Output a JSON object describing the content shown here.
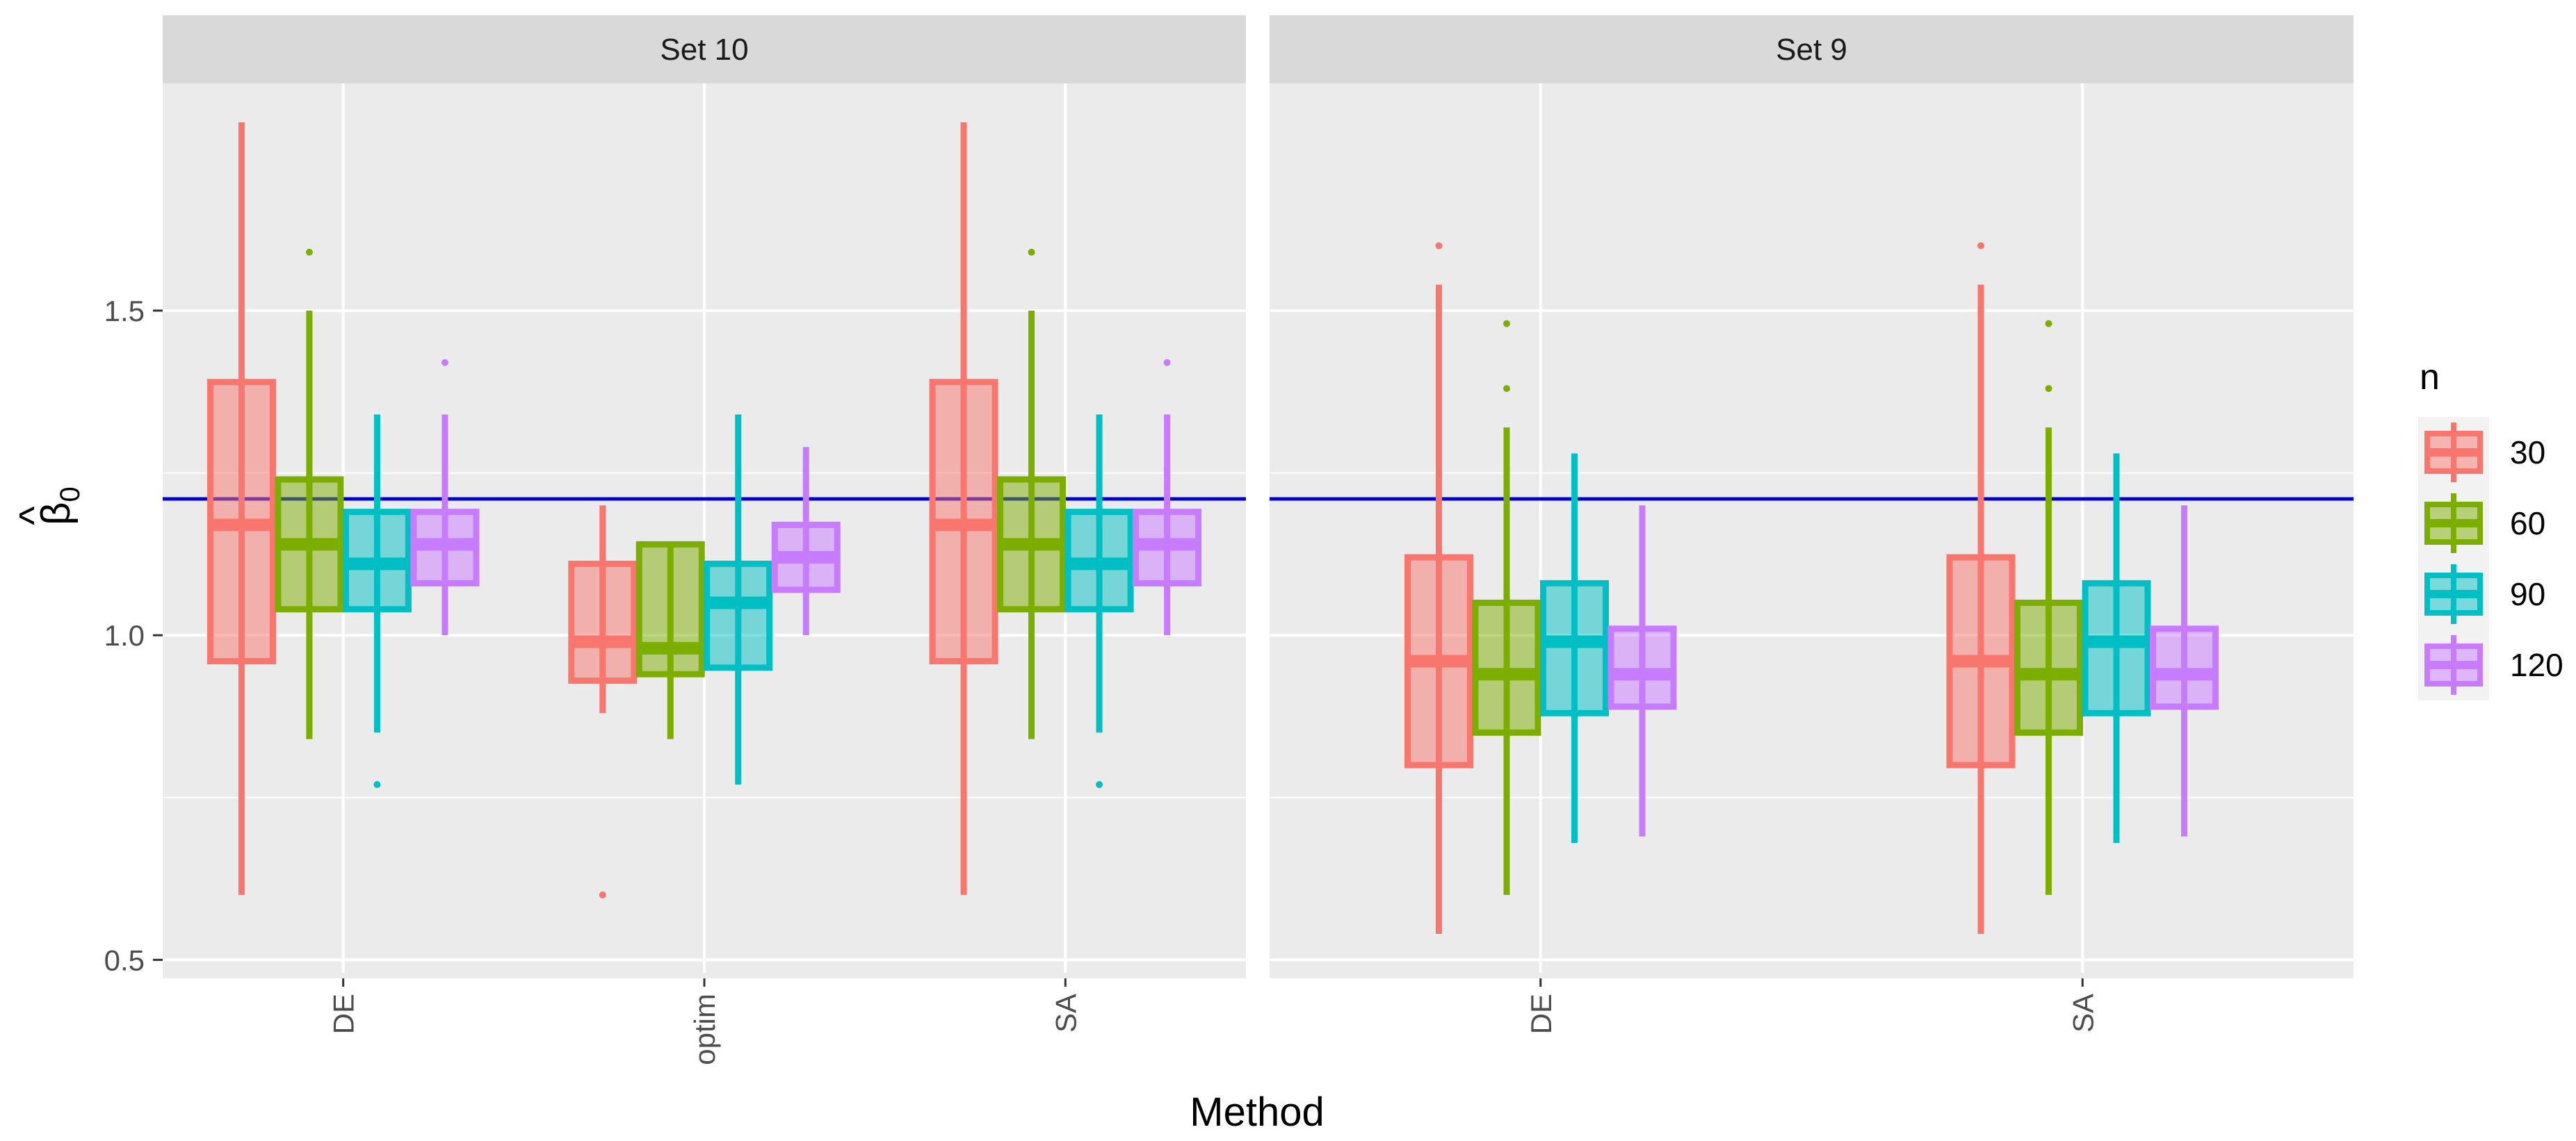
{
  "chart_data": {
    "type": "boxplot",
    "xlabel": "Method",
    "ylabel": "β̂₀",
    "ylabel_parts": {
      "hat": "^",
      "symbol": "β",
      "subscript": "0"
    },
    "ylim": [
      0.48,
      1.85
    ],
    "yticks": [
      0.5,
      1.0,
      1.5
    ],
    "ytick_labels": [
      "0.5",
      "1.0",
      "1.5"
    ],
    "reference_line": {
      "y": 1.21,
      "color": "#0000cc"
    },
    "legend": {
      "title": "n",
      "entries": [
        {
          "label": "30",
          "color": "#F8766D"
        },
        {
          "label": "60",
          "color": "#7CAE00"
        },
        {
          "label": "90",
          "color": "#00BFC4"
        },
        {
          "label": "120",
          "color": "#C77CFF"
        }
      ]
    },
    "panels": [
      {
        "strip": "Set 10",
        "categories": [
          "DE",
          "optim",
          "SA"
        ],
        "boxes": [
          [
            {
              "n": "30",
              "lower_whisker": 0.6,
              "q1": 0.96,
              "median": 1.17,
              "q3": 1.39,
              "upper_whisker": 1.79,
              "outliers": []
            },
            {
              "n": "60",
              "lower_whisker": 0.84,
              "q1": 1.04,
              "median": 1.14,
              "q3": 1.24,
              "upper_whisker": 1.5,
              "outliers": [
                1.59
              ]
            },
            {
              "n": "90",
              "lower_whisker": 0.85,
              "q1": 1.04,
              "median": 1.11,
              "q3": 1.19,
              "upper_whisker": 1.34,
              "outliers": [
                0.77
              ]
            },
            {
              "n": "120",
              "lower_whisker": 1.0,
              "q1": 1.08,
              "median": 1.14,
              "q3": 1.19,
              "upper_whisker": 1.34,
              "outliers": [
                1.42
              ]
            }
          ],
          [
            {
              "n": "30",
              "lower_whisker": 0.88,
              "q1": 0.93,
              "median": 0.99,
              "q3": 1.11,
              "upper_whisker": 1.2,
              "outliers": [
                0.6
              ]
            },
            {
              "n": "60",
              "lower_whisker": 0.84,
              "q1": 0.94,
              "median": 0.98,
              "q3": 1.14,
              "upper_whisker": 1.14,
              "outliers": []
            },
            {
              "n": "90",
              "lower_whisker": 0.77,
              "q1": 0.95,
              "median": 1.05,
              "q3": 1.11,
              "upper_whisker": 1.34,
              "outliers": []
            },
            {
              "n": "120",
              "lower_whisker": 1.0,
              "q1": 1.07,
              "median": 1.12,
              "q3": 1.17,
              "upper_whisker": 1.29,
              "outliers": []
            }
          ],
          [
            {
              "n": "30",
              "lower_whisker": 0.6,
              "q1": 0.96,
              "median": 1.17,
              "q3": 1.39,
              "upper_whisker": 1.79,
              "outliers": []
            },
            {
              "n": "60",
              "lower_whisker": 0.84,
              "q1": 1.04,
              "median": 1.14,
              "q3": 1.24,
              "upper_whisker": 1.5,
              "outliers": [
                1.59
              ]
            },
            {
              "n": "90",
              "lower_whisker": 0.85,
              "q1": 1.04,
              "median": 1.11,
              "q3": 1.19,
              "upper_whisker": 1.34,
              "outliers": [
                0.77
              ]
            },
            {
              "n": "120",
              "lower_whisker": 1.0,
              "q1": 1.08,
              "median": 1.14,
              "q3": 1.19,
              "upper_whisker": 1.34,
              "outliers": [
                1.42
              ]
            }
          ]
        ]
      },
      {
        "strip": "Set 9",
        "categories": [
          "DE",
          "SA"
        ],
        "boxes": [
          [
            {
              "n": "30",
              "lower_whisker": 0.54,
              "q1": 0.8,
              "median": 0.96,
              "q3": 1.12,
              "upper_whisker": 1.54,
              "outliers": [
                1.6
              ]
            },
            {
              "n": "60",
              "lower_whisker": 0.6,
              "q1": 0.85,
              "median": 0.94,
              "q3": 1.05,
              "upper_whisker": 1.32,
              "outliers": [
                1.38,
                1.48
              ]
            },
            {
              "n": "90",
              "lower_whisker": 0.68,
              "q1": 0.88,
              "median": 0.99,
              "q3": 1.08,
              "upper_whisker": 1.28,
              "outliers": []
            },
            {
              "n": "120",
              "lower_whisker": 0.69,
              "q1": 0.89,
              "median": 0.94,
              "q3": 1.01,
              "upper_whisker": 1.2,
              "outliers": []
            }
          ],
          [
            {
              "n": "30",
              "lower_whisker": 0.54,
              "q1": 0.8,
              "median": 0.96,
              "q3": 1.12,
              "upper_whisker": 1.54,
              "outliers": [
                1.6
              ]
            },
            {
              "n": "60",
              "lower_whisker": 0.6,
              "q1": 0.85,
              "median": 0.94,
              "q3": 1.05,
              "upper_whisker": 1.32,
              "outliers": [
                1.38,
                1.48
              ]
            },
            {
              "n": "90",
              "lower_whisker": 0.68,
              "q1": 0.88,
              "median": 0.99,
              "q3": 1.08,
              "upper_whisker": 1.28,
              "outliers": []
            },
            {
              "n": "120",
              "lower_whisker": 0.69,
              "q1": 0.89,
              "median": 0.94,
              "q3": 1.01,
              "upper_whisker": 1.2,
              "outliers": []
            }
          ]
        ]
      }
    ]
  }
}
